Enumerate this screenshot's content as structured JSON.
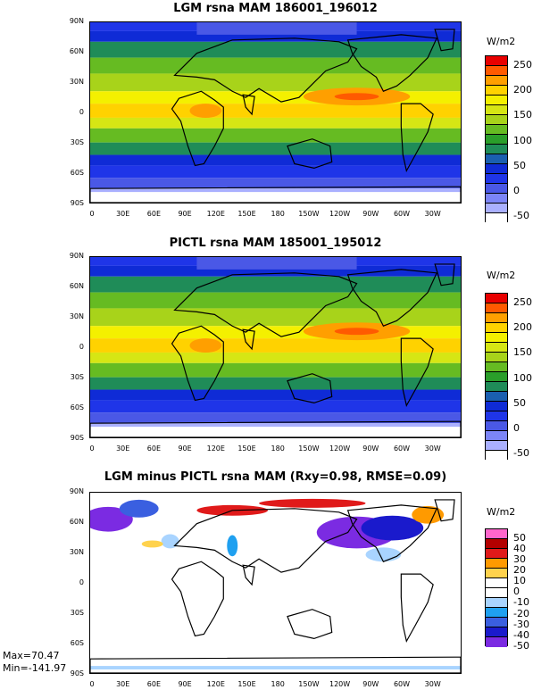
{
  "chart_data": [
    {
      "type": "heatmap",
      "title": "LGM rsna MAM 186001_196012",
      "legend_title": "W/m2",
      "y_ticks": [
        "90N",
        "60N",
        "30N",
        "0",
        "30S",
        "60S",
        "90S"
      ],
      "x_ticks": [
        "0",
        "30E",
        "60E",
        "90E",
        "120E",
        "150E",
        "180",
        "150W",
        "120W",
        "90W",
        "60W",
        "30W"
      ],
      "levels": [
        "250",
        "200",
        "150",
        "100",
        "50",
        "0",
        "-50"
      ],
      "colors": [
        "#ffffff",
        "#aab0ff",
        "#7c85f7",
        "#4a58e6",
        "#1f35e8",
        "#0f2bd6",
        "#1a5fb0",
        "#1f8c58",
        "#2a9e2a",
        "#66bb22",
        "#a8d31a",
        "#d6e614",
        "#f4f000",
        "#ffd200",
        "#ff9f00",
        "#ff5a00",
        "#e80000"
      ]
    },
    {
      "type": "heatmap",
      "title": "PICTL rsna MAM 185001_195012",
      "legend_title": "W/m2",
      "y_ticks": [
        "90N",
        "60N",
        "30N",
        "0",
        "30S",
        "60S",
        "90S"
      ],
      "x_ticks": [
        "0",
        "30E",
        "60E",
        "90E",
        "120E",
        "150E",
        "180",
        "150W",
        "120W",
        "90W",
        "60W",
        "30W"
      ],
      "levels": [
        "250",
        "200",
        "150",
        "100",
        "50",
        "0",
        "-50"
      ],
      "colors": [
        "#ffffff",
        "#aab0ff",
        "#7c85f7",
        "#4a58e6",
        "#1f35e8",
        "#0f2bd6",
        "#1a5fb0",
        "#1f8c58",
        "#2a9e2a",
        "#66bb22",
        "#a8d31a",
        "#d6e614",
        "#f4f000",
        "#ffd200",
        "#ff9f00",
        "#ff5a00",
        "#e80000"
      ]
    },
    {
      "type": "heatmap",
      "title": "LGM minus PICTL rsna MAM (Rxy=0.98, RMSE=0.09)",
      "legend_title": "W/m2",
      "y_ticks": [
        "90N",
        "60N",
        "30N",
        "0",
        "30S",
        "60S",
        "90S"
      ],
      "x_ticks": [
        "0",
        "30E",
        "60E",
        "90E",
        "120E",
        "150E",
        "180",
        "150W",
        "120W",
        "90W",
        "60W",
        "30W"
      ],
      "levels": [
        "50",
        "40",
        "30",
        "20",
        "10",
        "0",
        "-10",
        "-20",
        "-30",
        "-40",
        "-50"
      ],
      "colors": [
        "#7b2be2",
        "#1a1acc",
        "#3a5fe0",
        "#1fa0f0",
        "#a9d4ff",
        "#ffffff",
        "#ffffff",
        "#ffd24d",
        "#ff9a00",
        "#e01a1a",
        "#b30000",
        "#ff66cc"
      ],
      "max_label": "Max=70.47",
      "min_label": "Min=-141.97"
    }
  ]
}
